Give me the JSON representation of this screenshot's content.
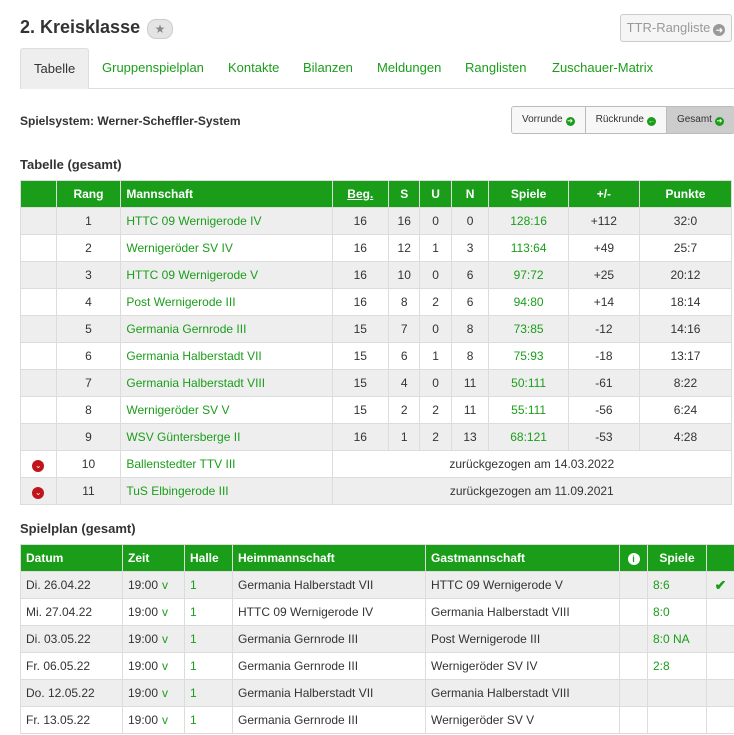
{
  "header": {
    "title": "2. Kreisklasse",
    "star_icon": "star-icon",
    "ttr_button": "TTR-Rangliste"
  },
  "tabs": [
    "Tabelle",
    "Gruppenspielplan",
    "Kontakte",
    "Bilanzen",
    "Meldungen",
    "Ranglisten",
    "Zuschauer-Matrix"
  ],
  "spielsystem": "Spielsystem: Werner-Scheffler-System",
  "segments": {
    "vorrunde": "Vorrunde",
    "rueckrunde": "Rückrunde",
    "gesamt": "Gesamt"
  },
  "tabelle": {
    "title": "Tabelle (gesamt)",
    "headers": {
      "rang": "Rang",
      "mannschaft": "Mannschaft",
      "beg": "Beg.",
      "s": "S",
      "u": "U",
      "n": "N",
      "spiele": "Spiele",
      "diff": "+/-",
      "punkte": "Punkte"
    },
    "rows": [
      {
        "rang": "1",
        "team": "HTTC 09 Wernigerode IV",
        "beg": "16",
        "s": "16",
        "u": "0",
        "n": "0",
        "spiele": "128:16",
        "diff": "+112",
        "punkte": "32:0"
      },
      {
        "rang": "2",
        "team": "Wernigeröder SV IV",
        "beg": "16",
        "s": "12",
        "u": "1",
        "n": "3",
        "spiele": "113:64",
        "diff": "+49",
        "punkte": "25:7"
      },
      {
        "rang": "3",
        "team": "HTTC 09 Wernigerode V",
        "beg": "16",
        "s": "10",
        "u": "0",
        "n": "6",
        "spiele": "97:72",
        "diff": "+25",
        "punkte": "20:12"
      },
      {
        "rang": "4",
        "team": "Post Wernigerode III",
        "beg": "16",
        "s": "8",
        "u": "2",
        "n": "6",
        "spiele": "94:80",
        "diff": "+14",
        "punkte": "18:14"
      },
      {
        "rang": "5",
        "team": "Germania Gernrode III",
        "beg": "15",
        "s": "7",
        "u": "0",
        "n": "8",
        "spiele": "73:85",
        "diff": "-12",
        "punkte": "14:16"
      },
      {
        "rang": "6",
        "team": "Germania Halberstadt VII",
        "beg": "15",
        "s": "6",
        "u": "1",
        "n": "8",
        "spiele": "75:93",
        "diff": "-18",
        "punkte": "13:17"
      },
      {
        "rang": "7",
        "team": "Germania Halberstadt VIII",
        "beg": "15",
        "s": "4",
        "u": "0",
        "n": "11",
        "spiele": "50:111",
        "diff": "-61",
        "punkte": "8:22"
      },
      {
        "rang": "8",
        "team": "Wernigeröder SV V",
        "beg": "15",
        "s": "2",
        "u": "2",
        "n": "11",
        "spiele": "55:111",
        "diff": "-56",
        "punkte": "6:24"
      },
      {
        "rang": "9",
        "team": "WSV Güntersberge II",
        "beg": "16",
        "s": "1",
        "u": "2",
        "n": "13",
        "spiele": "68:121",
        "diff": "-53",
        "punkte": "4:28"
      }
    ],
    "withdrawn": [
      {
        "rang": "10",
        "team": "Ballenstedter TTV III",
        "note": "zurückgezogen am 14.03.2022"
      },
      {
        "rang": "11",
        "team": "TuS Elbingerode III",
        "note": "zurückgezogen am 11.09.2021"
      }
    ]
  },
  "spielplan": {
    "title": "Spielplan (gesamt)",
    "headers": {
      "datum": "Datum",
      "zeit": "Zeit",
      "halle": "Halle",
      "heim": "Heimmannschaft",
      "gast": "Gastmannschaft",
      "spiele": "Spiele"
    },
    "rows": [
      {
        "datum": "Di. 26.04.22",
        "zeit": "19:00",
        "v": "v",
        "halle": "1",
        "heim": "Germania Halberstadt VII",
        "gast": "HTTC 09 Wernigerode V",
        "spiele": "8:6",
        "check": "✔"
      },
      {
        "datum": "Mi. 27.04.22",
        "zeit": "19:00",
        "v": "v",
        "halle": "1",
        "heim": "HTTC 09 Wernigerode IV",
        "gast": "Germania Halberstadt VIII",
        "spiele": "8:0",
        "check": ""
      },
      {
        "datum": "Di. 03.05.22",
        "zeit": "19:00",
        "v": "v",
        "halle": "1",
        "heim": "Germania Gernrode III",
        "gast": "Post Wernigerode III",
        "spiele": "8:0 NA",
        "check": ""
      },
      {
        "datum": "Fr. 06.05.22",
        "zeit": "19:00",
        "v": "v",
        "halle": "1",
        "heim": "Germania Gernrode III",
        "gast": "Wernigeröder SV IV",
        "spiele": "2:8",
        "check": ""
      },
      {
        "datum": "Do. 12.05.22",
        "zeit": "19:00",
        "v": "v",
        "halle": "1",
        "heim": "Germania Halberstadt VII",
        "gast": "Germania Halberstadt VIII",
        "spiele": "",
        "check": ""
      },
      {
        "datum": "Fr. 13.05.22",
        "zeit": "19:00",
        "v": "v",
        "halle": "1",
        "heim": "Germania Gernrode III",
        "gast": "Wernigeröder SV V",
        "spiele": "",
        "check": ""
      }
    ]
  },
  "colors": {
    "accent": "#1a9e1a",
    "withdrawn_icon": "#c0161b"
  }
}
